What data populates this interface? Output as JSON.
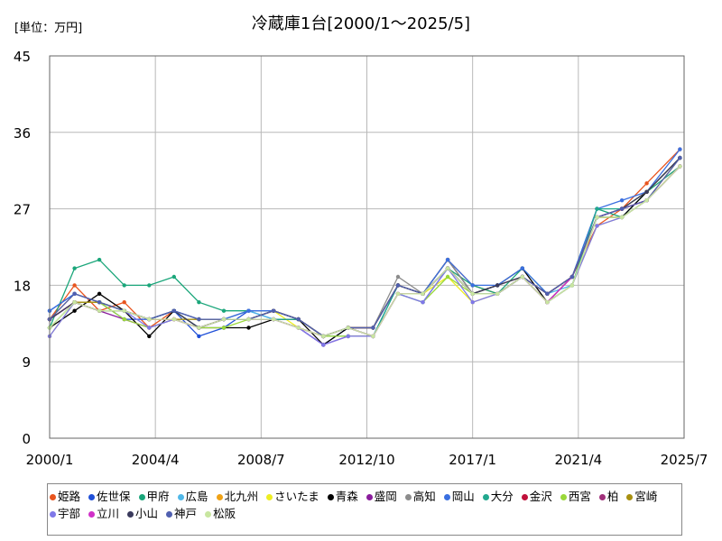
{
  "unit_label": "[単位：万円]",
  "title": "冷蔵庫1台[2000/1～2025/5]",
  "chart_data": {
    "type": "line",
    "title": "冷蔵庫1台[2000/1～2025/5]",
    "unit": "[単位：万円]",
    "ylim": [
      0,
      45
    ],
    "yticks": [
      "0",
      "9",
      "18",
      "27",
      "36",
      "45"
    ],
    "xlim": [
      "2000/1",
      "2025/7"
    ],
    "xticks": [
      "2000/1",
      "2004/4",
      "2008/7",
      "2012/10",
      "2017/1",
      "2021/4",
      "2025/7"
    ],
    "grid": true,
    "legend_position": "bottom",
    "x": [
      "2000/1",
      "2001/1",
      "2002/1",
      "2003/1",
      "2004/1",
      "2005/1",
      "2006/1",
      "2007/1",
      "2008/1",
      "2009/1",
      "2010/1",
      "2011/1",
      "2012/1",
      "2013/1",
      "2014/1",
      "2015/1",
      "2016/1",
      "2017/1",
      "2018/1",
      "2019/1",
      "2020/1",
      "2021/1",
      "2022/1",
      "2023/1",
      "2024/1",
      "2025/5"
    ],
    "series": [
      {
        "name": "姫路",
        "color": "#e8541e",
        "values": [
          14,
          18,
          15,
          16,
          13,
          15,
          13,
          14,
          14,
          15,
          14,
          12,
          13,
          13,
          18,
          17,
          21,
          18,
          17,
          19,
          17,
          19,
          25,
          27,
          30,
          34
        ]
      },
      {
        "name": "佐世保",
        "color": "#1f4fd8",
        "values": [
          15,
          17,
          16,
          14,
          14,
          15,
          12,
          13,
          15,
          14,
          13,
          11,
          13,
          12,
          17,
          16,
          20,
          17,
          18,
          19,
          16,
          18,
          26,
          27,
          29,
          33
        ]
      },
      {
        "name": "甲府",
        "color": "#1aa67a",
        "values": [
          13,
          20,
          21,
          18,
          18,
          19,
          16,
          15,
          15,
          15,
          14,
          12,
          12,
          12,
          18,
          17,
          20,
          18,
          17,
          20,
          17,
          19,
          27,
          26,
          29,
          32
        ]
      },
      {
        "name": "広島",
        "color": "#50b8e8",
        "values": [
          13,
          16,
          16,
          15,
          14,
          14,
          14,
          14,
          15,
          14,
          14,
          12,
          13,
          12,
          18,
          17,
          20,
          17,
          17,
          19,
          17,
          18,
          26,
          27,
          28,
          32
        ]
      },
      {
        "name": "北九州",
        "color": "#f0a216",
        "values": [
          14,
          17,
          16,
          15,
          14,
          14,
          14,
          14,
          14,
          15,
          14,
          12,
          13,
          13,
          18,
          17,
          20,
          17,
          18,
          19,
          16,
          18,
          26,
          26,
          28,
          33
        ]
      },
      {
        "name": "さいたま",
        "color": "#eeee22",
        "values": [
          12,
          16,
          15,
          15,
          14,
          14,
          13,
          14,
          14,
          15,
          13,
          12,
          13,
          12,
          17,
          17,
          19,
          16,
          17,
          19,
          16,
          18,
          25,
          26,
          28,
          32
        ]
      },
      {
        "name": "青森",
        "color": "#000000",
        "values": [
          13,
          15,
          17,
          15,
          12,
          15,
          13,
          13,
          13,
          14,
          14,
          11,
          13,
          13,
          18,
          17,
          21,
          17,
          18,
          20,
          16,
          19,
          26,
          26,
          29,
          33
        ]
      },
      {
        "name": "盛岡",
        "color": "#8a1c9c",
        "values": [
          14,
          16,
          15,
          14,
          13,
          14,
          13,
          14,
          14,
          14,
          13,
          11,
          12,
          12,
          17,
          17,
          20,
          17,
          17,
          19,
          17,
          19,
          26,
          27,
          29,
          33
        ]
      },
      {
        "name": "高知",
        "color": "#8c8c8c",
        "values": [
          14,
          16,
          16,
          15,
          14,
          15,
          14,
          14,
          15,
          15,
          14,
          12,
          13,
          13,
          19,
          17,
          21,
          17,
          17,
          19,
          16,
          19,
          26,
          27,
          28,
          32
        ]
      },
      {
        "name": "岡山",
        "color": "#3a6fe0",
        "values": [
          15,
          17,
          16,
          15,
          14,
          15,
          14,
          14,
          15,
          15,
          14,
          12,
          13,
          13,
          18,
          17,
          21,
          18,
          18,
          20,
          17,
          19,
          27,
          28,
          29,
          34
        ]
      },
      {
        "name": "大分",
        "color": "#22a88e",
        "values": [
          14,
          16,
          16,
          15,
          14,
          15,
          13,
          14,
          14,
          14,
          14,
          12,
          13,
          12,
          18,
          17,
          20,
          17,
          17,
          19,
          16,
          18,
          27,
          27,
          29,
          33
        ]
      },
      {
        "name": "金沢",
        "color": "#c0103a",
        "values": [
          14,
          16,
          15,
          15,
          14,
          14,
          13,
          14,
          14,
          15,
          14,
          12,
          13,
          13,
          18,
          17,
          20,
          17,
          17,
          19,
          17,
          19,
          26,
          27,
          28,
          32
        ]
      },
      {
        "name": "西宮",
        "color": "#9ad83a",
        "values": [
          13,
          16,
          16,
          14,
          13,
          14,
          13,
          13,
          14,
          14,
          13,
          12,
          12,
          12,
          17,
          16,
          19,
          17,
          17,
          19,
          16,
          18,
          26,
          26,
          28,
          32
        ]
      },
      {
        "name": "柏",
        "color": "#a0307a",
        "values": [
          14,
          16,
          15,
          15,
          14,
          14,
          13,
          14,
          14,
          14,
          13,
          12,
          13,
          12,
          17,
          17,
          20,
          17,
          17,
          19,
          16,
          19,
          26,
          27,
          28,
          32
        ]
      },
      {
        "name": "宮崎",
        "color": "#a89010",
        "values": [
          14,
          16,
          16,
          15,
          14,
          14,
          14,
          14,
          14,
          15,
          14,
          12,
          13,
          13,
          18,
          17,
          20,
          17,
          17,
          19,
          17,
          19,
          26,
          27,
          29,
          33
        ]
      },
      {
        "name": "宇部",
        "color": "#7f78e8",
        "values": [
          12,
          16,
          15,
          15,
          13,
          14,
          13,
          14,
          14,
          14,
          13,
          11,
          12,
          12,
          17,
          16,
          20,
          16,
          17,
          19,
          16,
          18,
          25,
          26,
          28,
          32
        ]
      },
      {
        "name": "立川",
        "color": "#d030c8",
        "values": [
          14,
          16,
          15,
          15,
          14,
          14,
          13,
          14,
          14,
          14,
          13,
          12,
          13,
          12,
          17,
          17,
          20,
          17,
          17,
          19,
          16,
          19,
          26,
          27,
          28,
          32
        ]
      },
      {
        "name": "小山",
        "color": "#3a3a5c",
        "values": [
          14,
          16,
          15,
          15,
          14,
          15,
          13,
          14,
          14,
          15,
          14,
          12,
          13,
          13,
          18,
          17,
          20,
          17,
          18,
          19,
          17,
          19,
          26,
          27,
          29,
          33
        ]
      },
      {
        "name": "神戸",
        "color": "#5060b0",
        "values": [
          14,
          17,
          16,
          15,
          14,
          15,
          14,
          14,
          14,
          15,
          14,
          12,
          13,
          13,
          18,
          17,
          20,
          17,
          17,
          19,
          17,
          19,
          26,
          27,
          28,
          33
        ]
      },
      {
        "name": "松阪",
        "color": "#c8e6a0",
        "values": [
          13,
          16,
          15,
          15,
          14,
          14,
          13,
          14,
          14,
          14,
          13,
          12,
          13,
          12,
          17,
          17,
          20,
          17,
          17,
          19,
          16,
          18,
          26,
          26,
          28,
          32
        ]
      }
    ]
  }
}
